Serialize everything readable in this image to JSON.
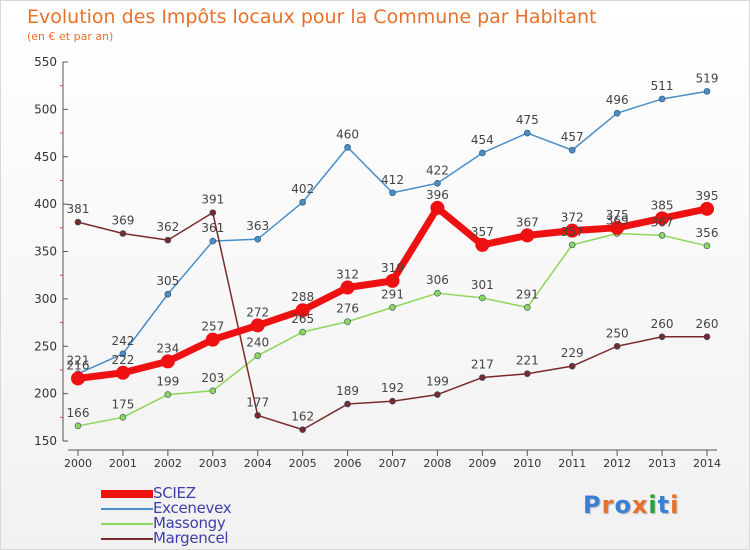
{
  "title": "Evolution des Impôts locaux pour la Commune par Habitant",
  "subtitle": "(en € et par an)",
  "logo": {
    "text": "Proxiti",
    "colors": [
      "#3b7fd4",
      "#e8702a",
      "#3b7fd4",
      "#e8702a",
      "#2aa03c",
      "#3b7fd4",
      "#e8702a"
    ]
  },
  "chart_data": {
    "type": "line",
    "x": [
      "2000",
      "2001",
      "2002",
      "2003",
      "2004",
      "2005",
      "2006",
      "2007",
      "2008",
      "2009",
      "2010",
      "2011",
      "2012",
      "2013",
      "2014"
    ],
    "ylim": [
      150,
      550
    ],
    "yticks": [
      150,
      200,
      250,
      300,
      350,
      400,
      450,
      500,
      550
    ],
    "grid": false,
    "legend_position": "bottom-left",
    "series": [
      {
        "name": "SCIEZ",
        "color": "#ee1111",
        "emphasis": true,
        "values": [
          216,
          222,
          234,
          257,
          272,
          288,
          312,
          319,
          396,
          357,
          367,
          372,
          375,
          385,
          395
        ],
        "labels": [
          "216",
          "222",
          "234",
          "257",
          "272",
          "288",
          "312",
          "319",
          "396",
          "357",
          "367",
          "372",
          "375",
          "385",
          "395"
        ]
      },
      {
        "name": "Excenevex",
        "color": "#4a8ec8",
        "emphasis": false,
        "values": [
          221,
          242,
          305,
          361,
          363,
          402,
          460,
          412,
          422,
          454,
          475,
          457,
          496,
          511,
          519
        ],
        "labels": [
          "221",
          "242",
          "305",
          "361",
          "363",
          "402",
          "460",
          "412",
          "422",
          "454",
          "475",
          "457",
          "496",
          "511",
          "519"
        ]
      },
      {
        "name": "Massongy",
        "color": "#8ed65a",
        "emphasis": false,
        "values": [
          166,
          175,
          199,
          203,
          240,
          265,
          276,
          291,
          306,
          301,
          291,
          357,
          369,
          367,
          356
        ],
        "labels": [
          "166",
          "175",
          "199",
          "203",
          "240",
          "265",
          "276",
          "291",
          "306",
          "301",
          "291",
          "357",
          "369",
          "367",
          "356"
        ]
      },
      {
        "name": "Margencel",
        "color": "#7a2a2a",
        "emphasis": false,
        "values": [
          381,
          369,
          362,
          391,
          177,
          162,
          189,
          192,
          199,
          217,
          221,
          229,
          250,
          260,
          260
        ],
        "labels": [
          "381",
          "369",
          "362",
          "391",
          "177",
          "162",
          "189",
          "192",
          "199",
          "217",
          "221",
          "229",
          "250",
          "260",
          "260"
        ]
      }
    ]
  }
}
